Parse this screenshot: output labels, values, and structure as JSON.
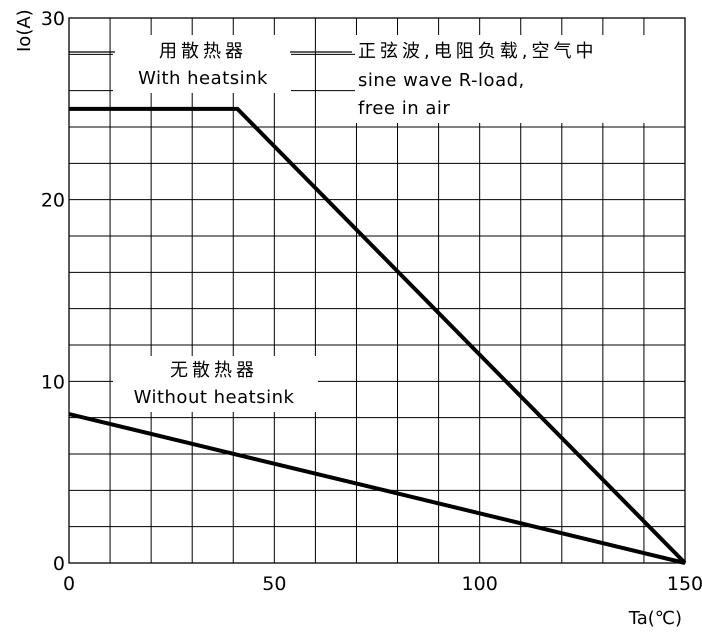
{
  "chart_data": {
    "type": "line",
    "xlabel": "Ta(℃)",
    "ylabel": "Io(A)",
    "xlim": [
      0,
      150
    ],
    "ylim": [
      0,
      30
    ],
    "xticks": [
      "0",
      "50",
      "100",
      "150"
    ],
    "yticks": [
      "0",
      "10",
      "20",
      "30"
    ],
    "grid": true,
    "series": [
      {
        "name": "用散热器 With heatsink",
        "x": [
          0,
          41,
          150
        ],
        "y": [
          25,
          25,
          0
        ]
      },
      {
        "name": "无散热器 Without heatsink",
        "x": [
          0,
          150
        ],
        "y": [
          8.2,
          0
        ]
      }
    ],
    "annotations": {
      "with_heatsink_zh": "用散热器",
      "with_heatsink_en": "With heatsink",
      "without_heatsink_zh": "无散热器",
      "without_heatsink_en": "Without heatsink",
      "condition_zh": "正弦波,电阻负载,空气中",
      "condition_en_1": "sine wave R-load,",
      "condition_en_2": "free in air"
    }
  }
}
